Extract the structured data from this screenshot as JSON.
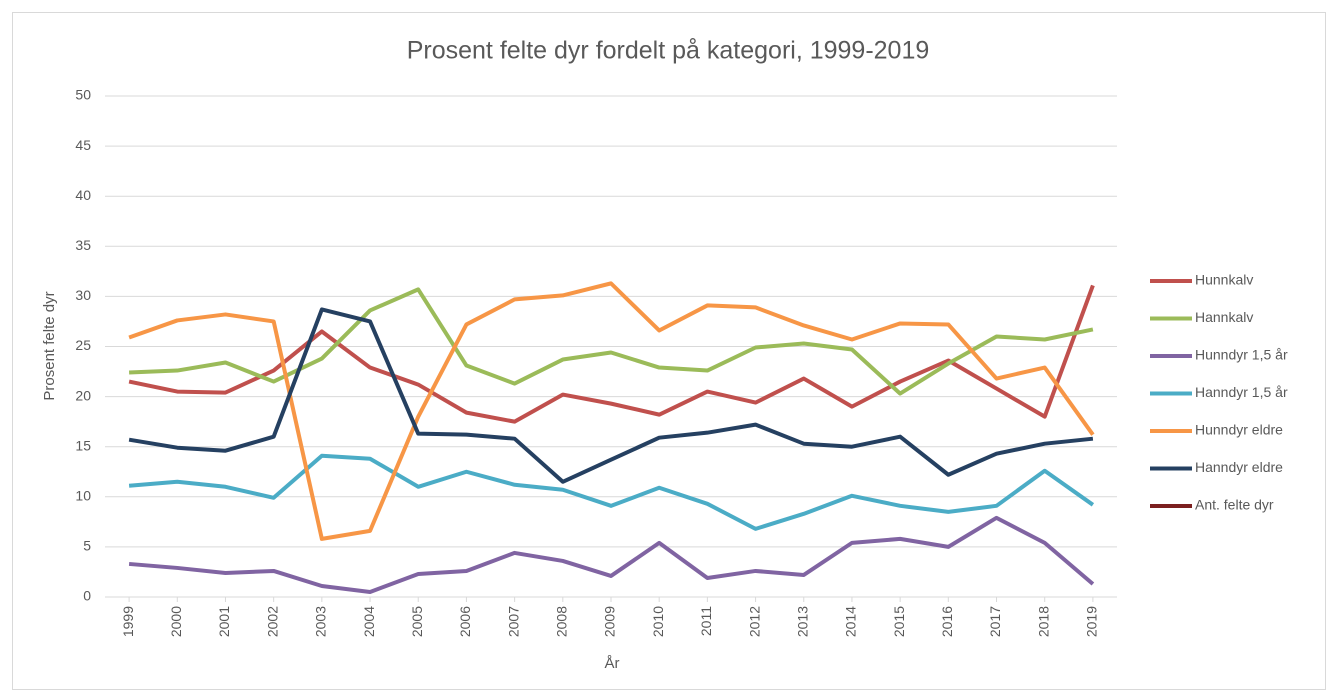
{
  "chart_data": {
    "type": "line",
    "title": "Prosent felte dyr fordelt på kategori, 1999-2019",
    "x_label": "År",
    "y_label": "Prosent felte dyr",
    "categories": [
      "1999",
      "2000",
      "2001",
      "2002",
      "2003",
      "2004",
      "2005",
      "2006",
      "2007",
      "2008",
      "2009",
      "2010",
      "2011",
      "2012",
      "2013",
      "2014",
      "2015",
      "2016",
      "2017",
      "2018",
      "2019"
    ],
    "ylim": [
      0,
      50
    ],
    "yticks": [
      0,
      5,
      10,
      15,
      20,
      25,
      30,
      35,
      40,
      45,
      50
    ],
    "grid": true,
    "legend": "right",
    "series": [
      {
        "name": "Hunnkalv",
        "color": "#c0504d",
        "values": [
          21.5,
          20.5,
          20.4,
          22.6,
          26.5,
          22.9,
          21.2,
          18.4,
          17.5,
          20.2,
          19.3,
          18.2,
          20.5,
          19.4,
          21.8,
          19.0,
          21.5,
          23.6,
          20.8,
          18.0,
          31.1
        ]
      },
      {
        "name": "Hannkalv",
        "color": "#9bbb59",
        "values": [
          22.4,
          22.6,
          23.4,
          21.5,
          23.8,
          28.6,
          30.7,
          23.1,
          21.3,
          23.7,
          24.4,
          22.9,
          22.6,
          24.9,
          25.3,
          24.7,
          20.3,
          23.3,
          26.0,
          25.7,
          26.7
        ]
      },
      {
        "name": "Hunndyr 1,5 år",
        "color": "#8064a2",
        "values": [
          3.3,
          2.9,
          2.4,
          2.6,
          1.1,
          0.5,
          2.3,
          2.6,
          4.4,
          3.6,
          2.1,
          5.4,
          1.9,
          2.6,
          2.2,
          5.4,
          5.8,
          5.0,
          7.9,
          5.4,
          1.3
        ]
      },
      {
        "name": "Hanndyr 1,5 år",
        "color": "#4bacc6",
        "values": [
          11.1,
          11.5,
          11.0,
          9.9,
          14.1,
          13.8,
          11.0,
          12.5,
          11.2,
          10.7,
          9.1,
          10.9,
          9.3,
          6.8,
          8.3,
          10.1,
          9.1,
          8.5,
          9.1,
          12.6,
          9.2
        ]
      },
      {
        "name": "Hunndyr eldre",
        "color": "#f79646",
        "values": [
          25.9,
          27.6,
          28.2,
          27.5,
          5.8,
          6.6,
          18.0,
          27.2,
          29.7,
          30.1,
          31.3,
          26.6,
          29.1,
          28.9,
          27.1,
          25.7,
          27.3,
          27.2,
          21.8,
          22.9,
          16.2
        ]
      },
      {
        "name": "Hanndyr eldre",
        "color": "#254061",
        "values": [
          15.7,
          14.9,
          14.6,
          16.0,
          28.7,
          27.5,
          16.3,
          16.2,
          15.8,
          11.5,
          13.7,
          15.9,
          16.4,
          17.2,
          15.3,
          15.0,
          16.0,
          12.2,
          14.3,
          15.3,
          15.8
        ]
      },
      {
        "name": "Ant. felte dyr",
        "color": "#7b2020",
        "values": [
          null,
          null,
          null,
          null,
          null,
          null,
          null,
          null,
          null,
          null,
          null,
          null,
          null,
          null,
          null,
          null,
          null,
          null,
          null,
          null,
          null
        ]
      }
    ]
  }
}
